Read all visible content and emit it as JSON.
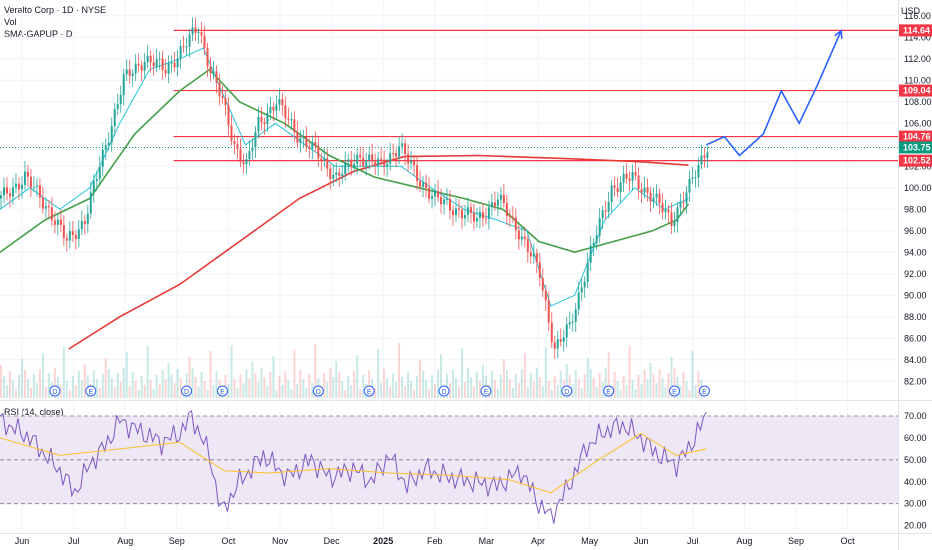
{
  "header": {
    "title": "Veralto Corp · 1D · NYSE",
    "vol_label": "Vol",
    "indicator_label": "SMA-GAPUP · D",
    "currency": "USD"
  },
  "rsi": {
    "label": "RSI (14, close)",
    "ticks": [
      "70.00",
      "60.00",
      "50.00",
      "40.00",
      "30.00",
      "20.00"
    ]
  },
  "colors": {
    "up": "#26a69a",
    "down": "#ef5350",
    "sma_short": "#26c6da",
    "sma_mid": "#43a047",
    "sma_long": "#e53935",
    "projection": "#2962ff",
    "level": "#f23645",
    "rsi_line": "#7e57c2",
    "rsi_ma": "#fbc02d",
    "rsi_band": "#ede7f6",
    "last_price": "#089981"
  },
  "chart_data": {
    "type": "candlestick",
    "x_labels": [
      "Jun",
      "Jul",
      "Aug",
      "Sep",
      "Oct",
      "Nov",
      "Dec",
      "2025",
      "Feb",
      "Mar",
      "Apr",
      "May",
      "Jun",
      "Jul",
      "Aug",
      "Sep",
      "Oct"
    ],
    "y_ticks": [
      "116.00",
      "114.00",
      "112.00",
      "110.00",
      "108.00",
      "106.00",
      "104.00",
      "102.00",
      "100.00",
      "98.00",
      "96.00",
      "94.00",
      "92.00",
      "90.00",
      "88.00",
      "86.00",
      "84.00",
      "82.00"
    ],
    "ylim": [
      81,
      117
    ],
    "levels": [
      {
        "value": 114.64,
        "label": "114.64"
      },
      {
        "value": 109.04,
        "label": "109.04"
      },
      {
        "value": 104.76,
        "label": "104.76"
      },
      {
        "value": 102.52,
        "label": "102.52"
      }
    ],
    "last_price": {
      "value": 103.75,
      "label": "103.75"
    },
    "price_path": [
      [
        0,
        99
      ],
      [
        8,
        101
      ],
      [
        16,
        98
      ],
      [
        22,
        95
      ],
      [
        28,
        97
      ],
      [
        35,
        104
      ],
      [
        41,
        110
      ],
      [
        48,
        112
      ],
      [
        55,
        111
      ],
      [
        61,
        113
      ],
      [
        66,
        115
      ],
      [
        70,
        111
      ],
      [
        74,
        108
      ],
      [
        78,
        104
      ],
      [
        82,
        102
      ],
      [
        86,
        106
      ],
      [
        92,
        108
      ],
      [
        99,
        105
      ],
      [
        106,
        103
      ],
      [
        112,
        101
      ],
      [
        120,
        103
      ],
      [
        127,
        102
      ],
      [
        133,
        104
      ],
      [
        139,
        101
      ],
      [
        145,
        99
      ],
      [
        152,
        98
      ],
      [
        159,
        97
      ],
      [
        166,
        99
      ],
      [
        173,
        96
      ],
      [
        180,
        92
      ],
      [
        185,
        85
      ],
      [
        190,
        87
      ],
      [
        197,
        94
      ],
      [
        204,
        100
      ],
      [
        211,
        101
      ],
      [
        218,
        99
      ],
      [
        224,
        97
      ],
      [
        230,
        100
      ],
      [
        236,
        104
      ]
    ],
    "sma_short": [
      [
        0,
        98
      ],
      [
        10,
        100
      ],
      [
        20,
        98
      ],
      [
        30,
        100
      ],
      [
        40,
        106
      ],
      [
        50,
        111
      ],
      [
        60,
        112
      ],
      [
        68,
        113
      ],
      [
        74,
        109
      ],
      [
        82,
        104
      ],
      [
        92,
        106
      ],
      [
        102,
        104
      ],
      [
        112,
        102
      ],
      [
        124,
        102
      ],
      [
        134,
        102
      ],
      [
        144,
        100
      ],
      [
        155,
        98
      ],
      [
        166,
        97
      ],
      [
        176,
        96
      ],
      [
        184,
        89
      ],
      [
        192,
        90
      ],
      [
        202,
        97
      ],
      [
        212,
        100
      ],
      [
        222,
        98
      ],
      [
        230,
        99
      ]
    ],
    "sma_mid": [
      [
        0,
        94
      ],
      [
        15,
        97
      ],
      [
        30,
        99
      ],
      [
        45,
        105
      ],
      [
        60,
        109
      ],
      [
        70,
        111
      ],
      [
        80,
        108
      ],
      [
        95,
        106
      ],
      [
        110,
        103
      ],
      [
        125,
        101
      ],
      [
        140,
        100
      ],
      [
        155,
        99
      ],
      [
        168,
        98
      ],
      [
        180,
        95
      ],
      [
        192,
        94
      ],
      [
        205,
        95
      ],
      [
        218,
        96
      ],
      [
        226,
        97
      ],
      [
        230,
        98.5
      ]
    ],
    "sma_long": [
      [
        23,
        85
      ],
      [
        40,
        88
      ],
      [
        60,
        91
      ],
      [
        80,
        95
      ],
      [
        100,
        99
      ],
      [
        118,
        101.5
      ],
      [
        135,
        102.9
      ],
      [
        160,
        103
      ],
      [
        190,
        102.7
      ],
      [
        215,
        102.4
      ],
      [
        230,
        102.1
      ]
    ],
    "projection": [
      [
        236,
        104
      ],
      [
        242,
        104.76
      ],
      [
        247,
        103
      ],
      [
        255,
        105
      ],
      [
        261,
        109
      ],
      [
        267,
        106
      ],
      [
        273,
        109.5
      ],
      [
        281,
        114.6
      ]
    ],
    "volume_markers": [
      {
        "label": "D",
        "x": 18
      },
      {
        "label": "E",
        "x": 30
      },
      {
        "label": "D",
        "x": 62
      },
      {
        "label": "E",
        "x": 74
      },
      {
        "label": "D",
        "x": 106
      },
      {
        "label": "E",
        "x": 123
      },
      {
        "label": "D",
        "x": 148
      },
      {
        "label": "E",
        "x": 162
      },
      {
        "label": "D",
        "x": 189
      },
      {
        "label": "E",
        "x": 203
      },
      {
        "label": "E",
        "x": 225
      },
      {
        "label": "E",
        "x": 235
      }
    ],
    "rsi_values": [
      [
        0,
        68
      ],
      [
        10,
        60
      ],
      [
        20,
        45
      ],
      [
        25,
        35
      ],
      [
        30,
        48
      ],
      [
        36,
        58
      ],
      [
        40,
        68
      ],
      [
        48,
        62
      ],
      [
        54,
        58
      ],
      [
        60,
        62
      ],
      [
        64,
        70
      ],
      [
        70,
        52
      ],
      [
        74,
        26
      ],
      [
        80,
        40
      ],
      [
        88,
        52
      ],
      [
        96,
        42
      ],
      [
        104,
        50
      ],
      [
        110,
        42
      ],
      [
        118,
        46
      ],
      [
        124,
        40
      ],
      [
        130,
        52
      ],
      [
        136,
        38
      ],
      [
        142,
        46
      ],
      [
        150,
        42
      ],
      [
        158,
        40
      ],
      [
        166,
        38
      ],
      [
        174,
        45
      ],
      [
        180,
        30
      ],
      [
        184,
        24
      ],
      [
        190,
        38
      ],
      [
        196,
        56
      ],
      [
        202,
        63
      ],
      [
        208,
        66
      ],
      [
        214,
        60
      ],
      [
        220,
        52
      ],
      [
        226,
        48
      ],
      [
        230,
        55
      ],
      [
        236,
        70
      ]
    ],
    "rsi_ma": [
      [
        0,
        60
      ],
      [
        20,
        52
      ],
      [
        40,
        55
      ],
      [
        60,
        58
      ],
      [
        75,
        45
      ],
      [
        90,
        44
      ],
      [
        110,
        46
      ],
      [
        130,
        44
      ],
      [
        150,
        43
      ],
      [
        170,
        41
      ],
      [
        184,
        35
      ],
      [
        200,
        50
      ],
      [
        214,
        62
      ],
      [
        226,
        52
      ],
      [
        236,
        55
      ]
    ]
  }
}
